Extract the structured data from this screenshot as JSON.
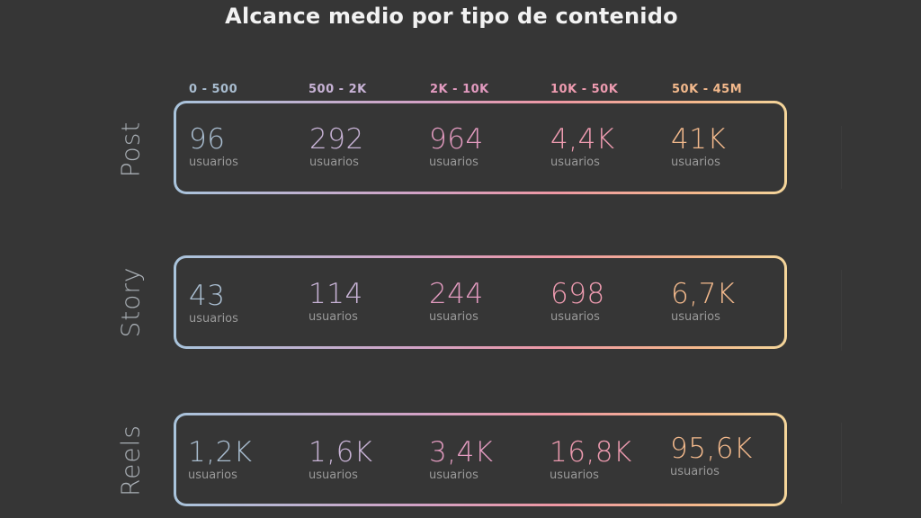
{
  "chart_data": {
    "type": "table",
    "title": "Alcance medio por tipo de contenido",
    "columns": [
      "0 - 500",
      "500 - 2K",
      "2K - 10K",
      "10K - 50K",
      "50K - 45M"
    ],
    "column_colors": [
      "#a9bdd0",
      "#c8b3d6",
      "#e39bc0",
      "#ee9bb0",
      "#f3b98c"
    ],
    "rows": [
      {
        "label": "Post",
        "values": [
          "96",
          "292",
          "964",
          "4,4K",
          "41K"
        ]
      },
      {
        "label": "Story",
        "values": [
          "43",
          "114",
          "244",
          "698",
          "6,7K"
        ]
      },
      {
        "label": "Reels",
        "values": [
          "1,2K",
          "1,6K",
          "3,4K",
          "16,8K",
          "95,6K"
        ]
      }
    ],
    "unit_label": "usuarios"
  }
}
